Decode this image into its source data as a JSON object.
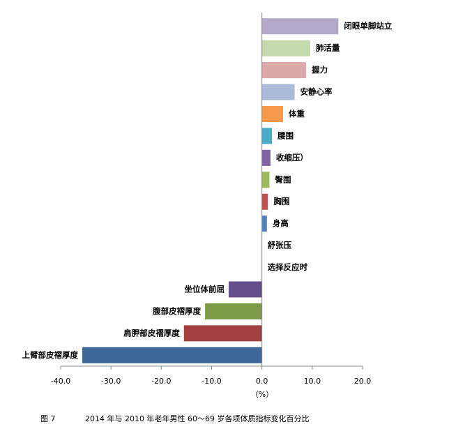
{
  "chart_data": {
    "type": "bar",
    "orientation": "horizontal",
    "categories": [
      "闭眼单脚站立",
      "肺活量",
      "握力",
      "安静心率",
      "体重",
      "腰围",
      "收缩压）",
      "臀围",
      "胸围",
      "身高",
      "舒张压",
      "选择反应时",
      "坐位体前屈",
      "腹部皮褶厚度",
      "肩胛部皮褶厚度",
      "上臂部皮褶厚度"
    ],
    "values": [
      15.2,
      9.6,
      8.8,
      6.5,
      4.2,
      2.0,
      1.7,
      1.5,
      1.2,
      1.0,
      0,
      0,
      -6.6,
      -11.3,
      -15.5,
      -35.7
    ],
    "colors": [
      "#b3a9c9",
      "#c4d9ad",
      "#dba9a8",
      "#a9bbd9",
      "#f79a4b",
      "#4bacc6",
      "#8064a2",
      "#9bbb59",
      "#c0504d",
      "#4f81bd",
      "#888888",
      "#888888",
      "#654f8a",
      "#7a9a46",
      "#a04040",
      "#3e6897"
    ],
    "xlabel": "（%）",
    "xlim": [
      -40,
      20
    ],
    "xticks": [
      {
        "value": -40,
        "label": "-40.0"
      },
      {
        "value": -30,
        "label": "-30.0"
      },
      {
        "value": -20,
        "label": "-20.0"
      },
      {
        "value": -10,
        "label": "-10.0"
      },
      {
        "value": 0,
        "label": "0.0"
      },
      {
        "value": 10,
        "label": "10.0"
      },
      {
        "value": 20,
        "label": "20.0"
      }
    ],
    "caption_label": "图 7",
    "caption": "2014 年与 2010 年老年男性 60～69 岁各项体质指标变化百分比"
  }
}
